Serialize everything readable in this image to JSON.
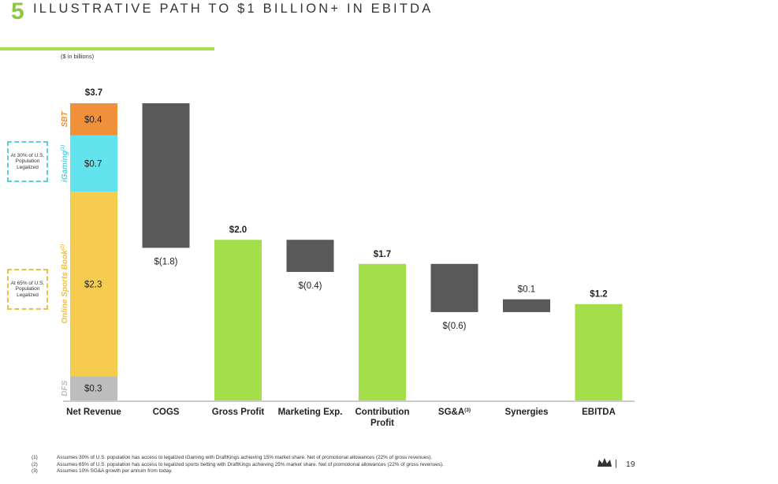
{
  "header": {
    "section_number": "5",
    "title": "ILLUSTRATIVE PATH TO $1 BILLION+ IN EBITDA",
    "units_note": "($ in billions)"
  },
  "annotations": {
    "igaming_box": "At 30% of U.S. Population Legalized",
    "osb_box": "At 65% of U.S. Population Legalized"
  },
  "colors": {
    "accent_green": "#8DC63F",
    "bar_green": "#A4DE4A",
    "bar_dark": "#595959",
    "sbt_orange": "#F0903A",
    "igaming_cyan": "#62E3ED",
    "osb_yellow": "#F5CC4D",
    "dfs_gray": "#BDBDBD",
    "dashed_cyan": "#5AD0DC",
    "dashed_yellow": "#EBC04A"
  },
  "chart_data": {
    "type": "waterfall",
    "units": "$ in billions",
    "categories": [
      "Net Revenue",
      "COGS",
      "Gross Profit",
      "Marketing Exp.",
      "Contribution\nProfit",
      "SG&A",
      "Synergies",
      "EBITDA"
    ],
    "category_labels": [
      {
        "text": "Net Revenue",
        "sup": ""
      },
      {
        "text": "COGS",
        "sup": ""
      },
      {
        "text": "Gross Profit",
        "sup": ""
      },
      {
        "text": "Marketing Exp.",
        "sup": ""
      },
      {
        "text": "Contribution\nProfit",
        "sup": ""
      },
      {
        "text": "SG&A",
        "sup": "(3)"
      },
      {
        "text": "Synergies",
        "sup": ""
      },
      {
        "text": "EBITDA",
        "sup": ""
      }
    ],
    "stack_segments": [
      {
        "name": "DFS",
        "value": 0.3,
        "label": "$0.3",
        "axis_label": "DFS",
        "axis_sup": "",
        "color": "#BDBDBD",
        "label_color": "#BDBDBD"
      },
      {
        "name": "Online Sports Book",
        "value": 2.3,
        "label": "$2.3",
        "axis_label": "Online Sports Book",
        "axis_sup": "(2)",
        "color": "#F5CC4D",
        "label_color": "#EBC04A"
      },
      {
        "name": "iGaming",
        "value": 0.7,
        "label": "$0.7",
        "axis_label": "iGaming",
        "axis_sup": "(1)",
        "color": "#62E3ED",
        "label_color": "#5AD0DC"
      },
      {
        "name": "SBT",
        "value": 0.4,
        "label": "$0.4",
        "axis_label": "SBT",
        "axis_sup": "",
        "color": "#F0903A",
        "label_color": "#F0903A"
      }
    ],
    "bars": [
      {
        "category": "Net Revenue",
        "kind": "stacked_total",
        "value": 3.7,
        "label": "$3.7"
      },
      {
        "category": "COGS",
        "kind": "decrease",
        "value": -1.8,
        "label": "$(1.8)"
      },
      {
        "category": "Gross Profit",
        "kind": "subtotal",
        "value": 2.0,
        "label": "$2.0"
      },
      {
        "category": "Marketing Exp.",
        "kind": "decrease",
        "value": -0.4,
        "label": "$(0.4)"
      },
      {
        "category": "Contribution Profit",
        "kind": "subtotal",
        "value": 1.7,
        "label": "$1.7"
      },
      {
        "category": "SG&A",
        "kind": "decrease",
        "value": -0.6,
        "label": "$(0.6)"
      },
      {
        "category": "Synergies",
        "kind": "increase",
        "value": 0.1,
        "label": "$0.1"
      },
      {
        "category": "EBITDA",
        "kind": "total",
        "value": 1.2,
        "label": "$1.2"
      }
    ],
    "ylim": [
      0,
      3.7
    ]
  },
  "footnotes": [
    {
      "num": "(1)",
      "text": "Assumes 30% of U.S. population has access to legalized iGaming with DraftKings achieving 15% market share. Net of promotional allowances (22% of gross revenues)."
    },
    {
      "num": "(2)",
      "text": "Assumes 65% of U.S. population has access to legalized sports betting with DraftKings achieving 25% market share. Net of promotional allowances (22% of gross revenues)."
    },
    {
      "num": "(3)",
      "text": "Assumes 10% SG&A growth per annum from today."
    }
  ],
  "footer": {
    "separator": "|",
    "page_number": "19",
    "logo_icon": "crown-icon"
  }
}
